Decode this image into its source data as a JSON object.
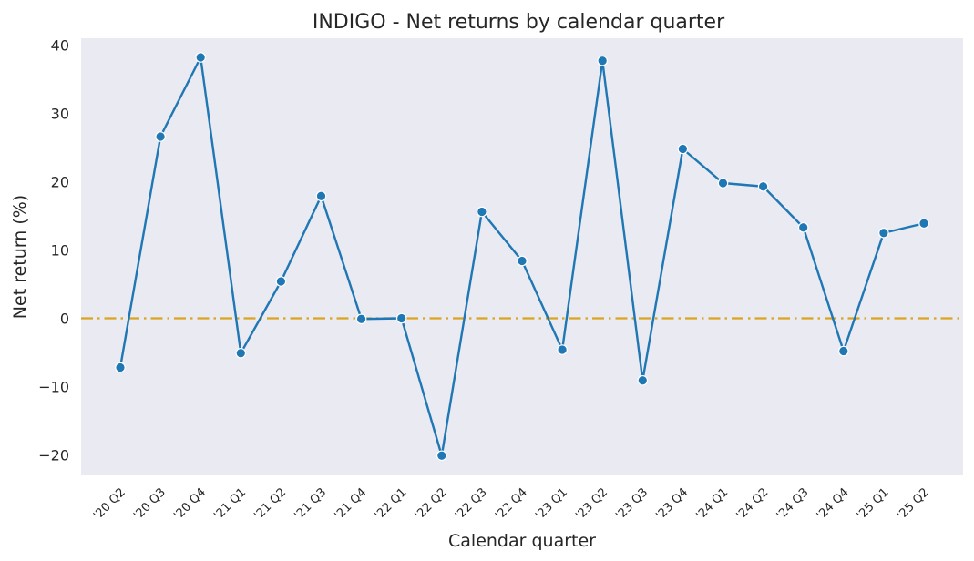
{
  "chart_data": {
    "type": "line",
    "title": "INDIGO - Net returns by calendar quarter",
    "xlabel": "Calendar quarter",
    "ylabel": "Net return (%)",
    "ylim": [
      -23,
      41
    ],
    "yticks": [
      40,
      30,
      20,
      10,
      0,
      -10,
      -20
    ],
    "ytick_labels": [
      "40",
      "30",
      "20",
      "10",
      "0",
      "−10",
      "−20"
    ],
    "grid": false,
    "background": "#eaeaf2",
    "categories": [
      "'20 Q2",
      "'20 Q3",
      "'20 Q4",
      "'21 Q1",
      "'21 Q2",
      "'21 Q3",
      "'21 Q4",
      "'22 Q1",
      "'22 Q2",
      "'22 Q3",
      "'22 Q4",
      "'23 Q1",
      "'23 Q2",
      "'23 Q3",
      "'23 Q4",
      "'24 Q1",
      "'24 Q2",
      "'24 Q3",
      "'24 Q4",
      "'25 Q1",
      "'25 Q2"
    ],
    "series": [
      {
        "color": "#1f77b4",
        "values": [
          -7.2,
          26.6,
          38.2,
          -5.1,
          5.4,
          17.9,
          -0.1,
          0.0,
          -20.1,
          15.6,
          8.4,
          -4.6,
          37.7,
          -9.1,
          24.8,
          19.8,
          19.3,
          13.3,
          -4.8,
          12.5,
          13.9
        ]
      }
    ],
    "reference_line": {
      "y": 0,
      "color": "#daa520",
      "style": "dash-dot"
    }
  }
}
